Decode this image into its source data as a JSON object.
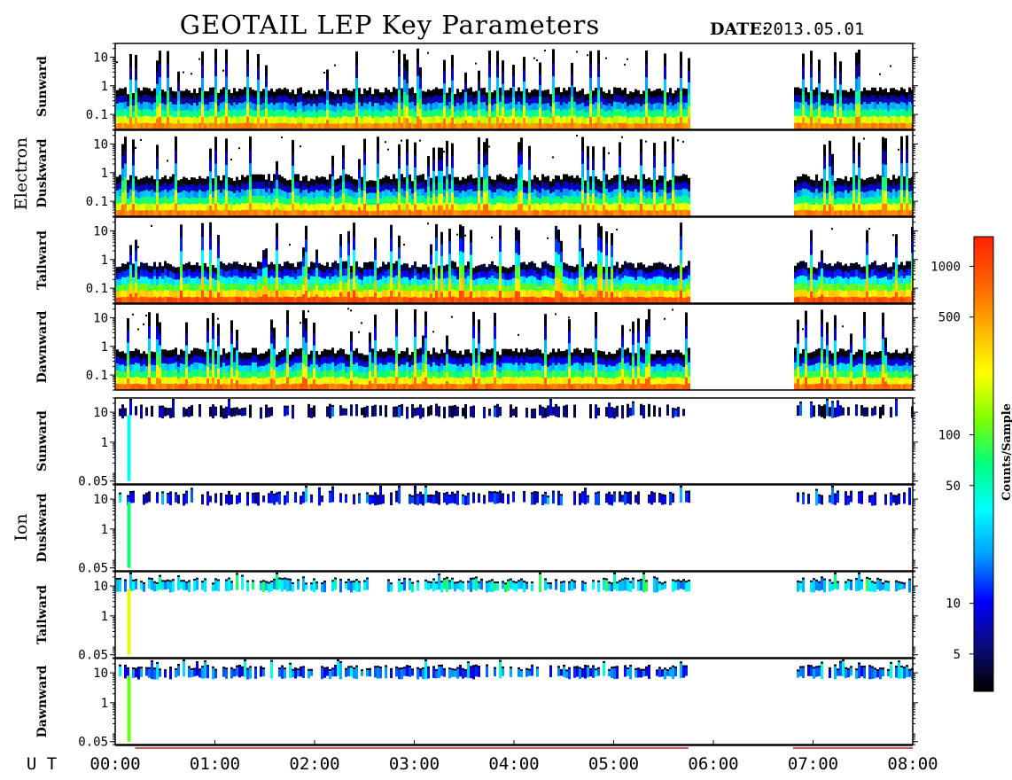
{
  "chart_data": {
    "type": "heatmap",
    "title": "GEOTAIL LEP Key Parameters",
    "date_label": "DATE:",
    "date_value": "2013.05.01",
    "xlabel": "U T",
    "x_ticks": [
      "00:00",
      "01:00",
      "02:00",
      "03:00",
      "04:00",
      "05:00",
      "06:00",
      "07:00",
      "08:00"
    ],
    "x_range_hours": [
      0,
      8
    ],
    "data_gap_hours": [
      5.75,
      6.8
    ],
    "groups": [
      {
        "name": "Electron",
        "y_ticks": [
          "10",
          "1",
          "0.1"
        ],
        "y_tick_values": [
          10,
          1,
          0.1
        ],
        "y_range": [
          0.03,
          30
        ],
        "panels": [
          {
            "name": "Sunward",
            "baseline_counts": 560,
            "spike_activity": 0.55
          },
          {
            "name": "Duskward",
            "baseline_counts": 600,
            "spike_activity": 0.7
          },
          {
            "name": "Tailward",
            "baseline_counts": 900,
            "spike_activity": 0.6
          },
          {
            "name": "Dawnward",
            "baseline_counts": 700,
            "spike_activity": 0.65
          }
        ]
      },
      {
        "name": "Ion",
        "y_ticks": [
          "10",
          "1",
          "0.05"
        ],
        "y_tick_values": [
          10,
          1,
          0.05
        ],
        "y_range": [
          0.04,
          30
        ],
        "panels": [
          {
            "name": "Sunward",
            "baseline_counts": 5,
            "spike_activity": 0.35
          },
          {
            "name": "Duskward",
            "baseline_counts": 9,
            "spike_activity": 0.55
          },
          {
            "name": "Tailward",
            "baseline_counts": 25,
            "spike_activity": 0.8
          },
          {
            "name": "Dawnward",
            "baseline_counts": 14,
            "spike_activity": 0.7
          }
        ]
      }
    ],
    "colorbar": {
      "label": "Counts/Sample",
      "scale": "log",
      "range": [
        3,
        1500
      ],
      "ticks": [
        "1000",
        "500",
        "100",
        "50",
        "10",
        "5"
      ],
      "tick_values": [
        1000,
        500,
        100,
        50,
        10,
        5
      ],
      "colors": [
        "#000000",
        "#0a0a7a",
        "#0000ff",
        "#00a0ff",
        "#00ffff",
        "#00ff80",
        "#80ff00",
        "#ffff00",
        "#ffb000",
        "#ff6000",
        "#ff2000"
      ]
    }
  }
}
